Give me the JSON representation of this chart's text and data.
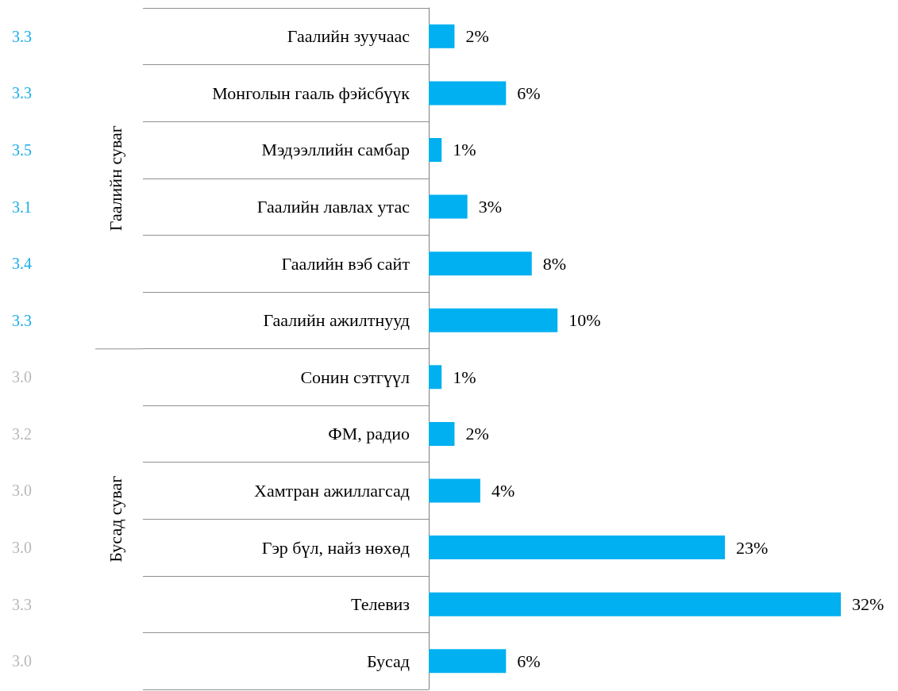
{
  "chart_data": {
    "type": "bar",
    "orientation": "horizontal",
    "color": "#00b0f0",
    "categories": [
      "Гаалийн зуучаас",
      "Монголын гааль фэйсбүүк",
      "Мэдээллийн самбар",
      "Гаалийн лавлах утас",
      "Гаалийн вэб сайт",
      "Гаалийн ажилтнууд",
      "Сонин сэтгүүл",
      "ФМ, радио",
      "Хамтран ажиллагсад",
      "Гэр бүл, найз нөхөд",
      "Телевиз",
      "Бусад"
    ],
    "values": [
      2,
      6,
      1,
      3,
      8,
      10,
      1,
      2,
      4,
      23,
      32,
      6
    ],
    "value_labels": [
      "2%",
      "6%",
      "1%",
      "3%",
      "8%",
      "10%",
      "1%",
      "2%",
      "4%",
      "23%",
      "32%",
      "6%"
    ],
    "annotations": [
      "3.3",
      "3.3",
      "3.5",
      "3.1",
      "3.4",
      "3.3",
      "3.0",
      "3.2",
      "3.0",
      "3.0",
      "3.3",
      "3.0",
      "Гаалийн суваг",
      "Бусад суваг"
    ],
    "grid": false
  }
}
